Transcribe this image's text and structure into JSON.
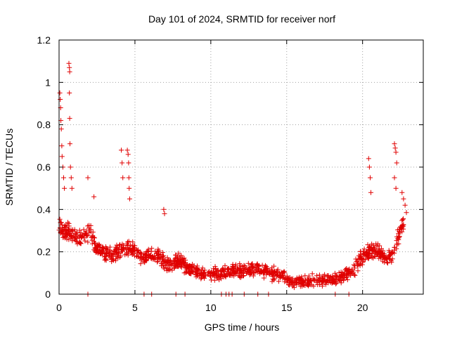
{
  "chart_data": {
    "type": "scatter",
    "title": "Day 101 of 2024, SRMTID for receiver norf",
    "xlabel": "GPS time / hours",
    "ylabel": "SRMTID / TECUs",
    "xlim": [
      0,
      24
    ],
    "ylim": [
      0,
      1.2
    ],
    "xticks": [
      0,
      5,
      10,
      15,
      20
    ],
    "xtick_labels": [
      "0",
      "5",
      "10",
      "15",
      "20"
    ],
    "yticks": [
      0,
      0.2,
      0.4,
      0.6,
      0.8,
      1.0,
      1.2
    ],
    "ytick_labels": [
      "0",
      "0.2",
      "0.4",
      "0.6",
      "0.8",
      "1",
      "1.2"
    ],
    "grid": true,
    "marker": "+",
    "series": [
      {
        "name": "SRMTID",
        "color": "#e00000",
        "trend_knots": [
          [
            0.0,
            0.32
          ],
          [
            0.5,
            0.3
          ],
          [
            1.0,
            0.28
          ],
          [
            1.5,
            0.26
          ],
          [
            2.0,
            0.3
          ],
          [
            2.5,
            0.22
          ],
          [
            3.0,
            0.2
          ],
          [
            3.5,
            0.18
          ],
          [
            4.0,
            0.2
          ],
          [
            4.5,
            0.22
          ],
          [
            5.0,
            0.2
          ],
          [
            5.5,
            0.18
          ],
          [
            6.0,
            0.18
          ],
          [
            6.5,
            0.19
          ],
          [
            7.0,
            0.15
          ],
          [
            7.5,
            0.14
          ],
          [
            8.0,
            0.16
          ],
          [
            8.5,
            0.12
          ],
          [
            9.0,
            0.11
          ],
          [
            9.5,
            0.09
          ],
          [
            10.0,
            0.1
          ],
          [
            10.5,
            0.09
          ],
          [
            11.0,
            0.1
          ],
          [
            11.5,
            0.11
          ],
          [
            12.0,
            0.11
          ],
          [
            12.5,
            0.11
          ],
          [
            13.0,
            0.13
          ],
          [
            13.5,
            0.11
          ],
          [
            14.0,
            0.1
          ],
          [
            14.5,
            0.09
          ],
          [
            15.0,
            0.07
          ],
          [
            15.5,
            0.06
          ],
          [
            16.0,
            0.06
          ],
          [
            16.5,
            0.06
          ],
          [
            17.0,
            0.07
          ],
          [
            17.5,
            0.07
          ],
          [
            18.0,
            0.07
          ],
          [
            18.5,
            0.08
          ],
          [
            19.0,
            0.1
          ],
          [
            19.5,
            0.13
          ],
          [
            20.0,
            0.18
          ],
          [
            20.5,
            0.2
          ],
          [
            21.0,
            0.2
          ],
          [
            21.5,
            0.17
          ],
          [
            22.0,
            0.18
          ],
          [
            22.5,
            0.3
          ],
          [
            22.9,
            0.4
          ]
        ],
        "spread": 0.06,
        "point_count": 1250,
        "seed": 101,
        "spikes": [
          {
            "x": 0.05,
            "y": 0.95
          },
          {
            "x": 0.08,
            "y": 0.92
          },
          {
            "x": 0.1,
            "y": 0.88
          },
          {
            "x": 0.12,
            "y": 0.82
          },
          {
            "x": 0.15,
            "y": 0.78
          },
          {
            "x": 0.18,
            "y": 0.7
          },
          {
            "x": 0.2,
            "y": 0.65
          },
          {
            "x": 0.25,
            "y": 0.6
          },
          {
            "x": 0.3,
            "y": 0.55
          },
          {
            "x": 0.35,
            "y": 0.5
          },
          {
            "x": 0.65,
            "y": 1.09
          },
          {
            "x": 0.68,
            "y": 1.07
          },
          {
            "x": 0.7,
            "y": 1.05
          },
          {
            "x": 0.68,
            "y": 0.95
          },
          {
            "x": 0.7,
            "y": 0.83
          },
          {
            "x": 0.72,
            "y": 0.71
          },
          {
            "x": 0.75,
            "y": 0.6
          },
          {
            "x": 0.8,
            "y": 0.55
          },
          {
            "x": 0.85,
            "y": 0.5
          },
          {
            "x": 1.9,
            "y": 0.55
          },
          {
            "x": 2.3,
            "y": 0.46
          },
          {
            "x": 4.1,
            "y": 0.68
          },
          {
            "x": 4.15,
            "y": 0.62
          },
          {
            "x": 4.5,
            "y": 0.68
          },
          {
            "x": 4.55,
            "y": 0.66
          },
          {
            "x": 4.58,
            "y": 0.62
          },
          {
            "x": 4.6,
            "y": 0.55
          },
          {
            "x": 4.62,
            "y": 0.5
          },
          {
            "x": 4.65,
            "y": 0.45
          },
          {
            "x": 4.2,
            "y": 0.55
          },
          {
            "x": 6.9,
            "y": 0.4
          },
          {
            "x": 6.95,
            "y": 0.38
          },
          {
            "x": 20.4,
            "y": 0.64
          },
          {
            "x": 20.45,
            "y": 0.6
          },
          {
            "x": 20.5,
            "y": 0.55
          },
          {
            "x": 20.55,
            "y": 0.48
          },
          {
            "x": 22.1,
            "y": 0.71
          },
          {
            "x": 22.15,
            "y": 0.69
          },
          {
            "x": 22.2,
            "y": 0.67
          },
          {
            "x": 22.25,
            "y": 0.62
          },
          {
            "x": 22.1,
            "y": 0.55
          },
          {
            "x": 22.2,
            "y": 0.5
          },
          {
            "x": 22.6,
            "y": 0.48
          },
          {
            "x": 22.7,
            "y": 0.45
          },
          {
            "x": 22.8,
            "y": 0.42
          }
        ],
        "zero_points": [
          1.9,
          5.6,
          6.1,
          7.7,
          8.3,
          10.7,
          11.0,
          11.2,
          11.4,
          12.2,
          13.1,
          13.8,
          18.2,
          19.1
        ]
      }
    ]
  }
}
